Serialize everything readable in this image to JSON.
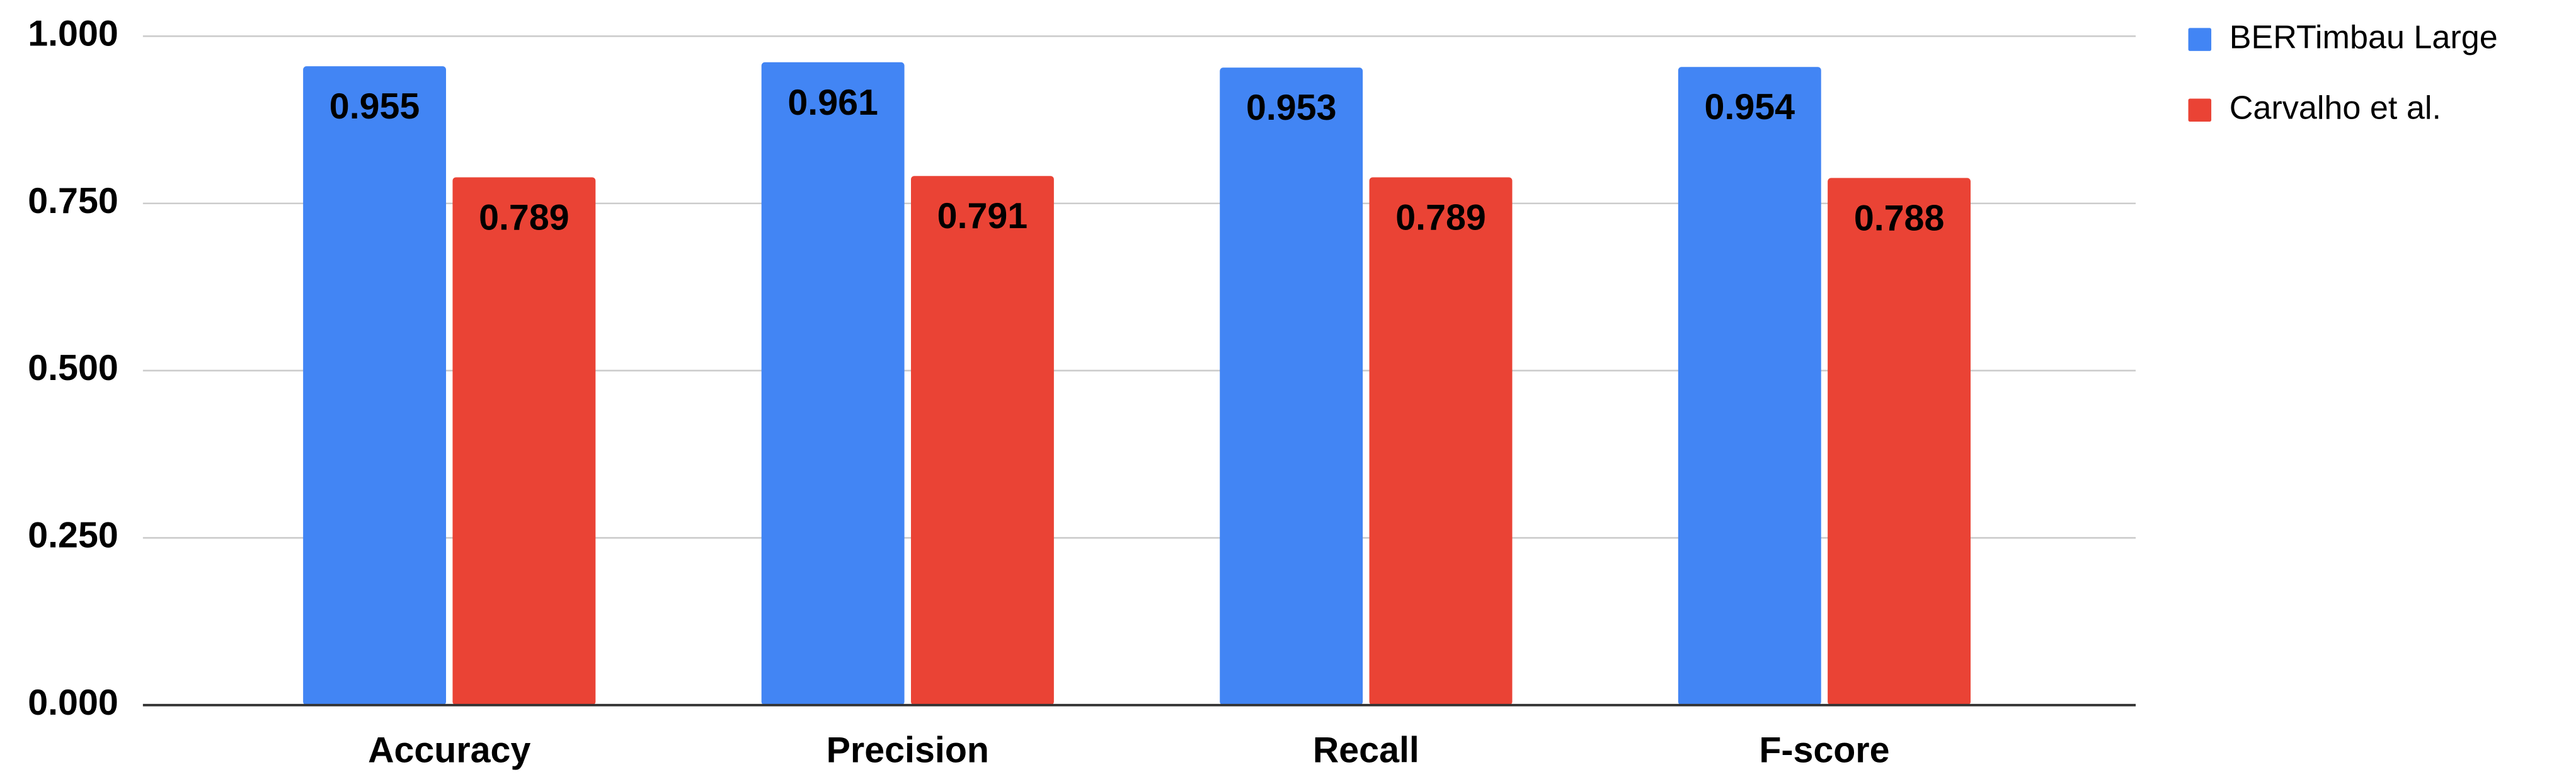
{
  "chart_data": {
    "type": "bar",
    "categories": [
      "Accuracy",
      "Precision",
      "Recall",
      "F-score"
    ],
    "series": [
      {
        "name": "BERTimbau Large",
        "color": "#4285f4",
        "values": [
          0.955,
          0.961,
          0.953,
          0.954
        ]
      },
      {
        "name": "Carvalho et al.",
        "color": "#ea4335",
        "values": [
          0.789,
          0.791,
          0.789,
          0.788
        ]
      }
    ],
    "ylim": [
      0,
      1
    ],
    "yticks": [
      {
        "value": 0,
        "label": "0.000"
      },
      {
        "value": 0.25,
        "label": "0.250"
      },
      {
        "value": 0.5,
        "label": "0.500"
      },
      {
        "value": 0.75,
        "label": "0.750"
      },
      {
        "value": 1,
        "label": "1.000"
      }
    ],
    "grid": true,
    "legend": "top-right"
  }
}
